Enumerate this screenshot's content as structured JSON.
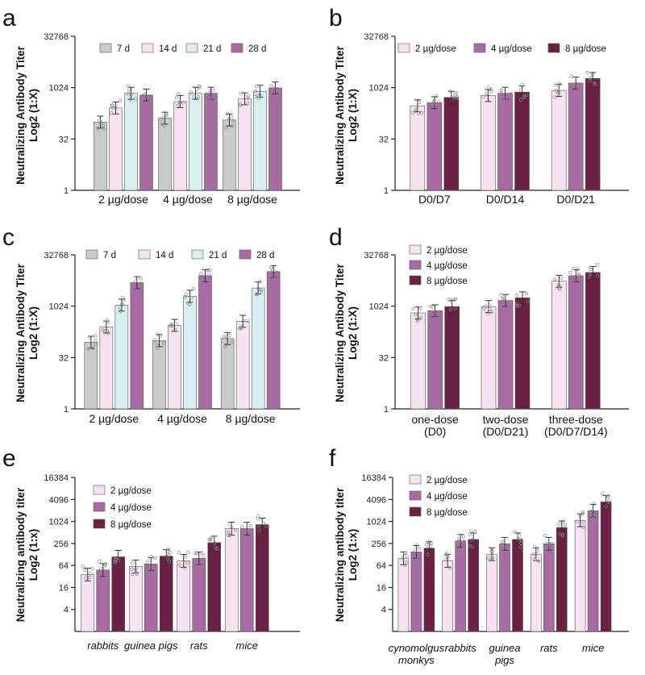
{
  "colors": {
    "7 d": "#c9cbcb",
    "14 d": "#f7e2f2",
    "21 d": "#d9eef0",
    "28 d": "#a86aa2",
    "2 µg/dose": "#f7e2f2",
    "4 µg/dose": "#a86aa2",
    "8 µg/dose": "#6a2143",
    "axis": "#222222"
  },
  "chart_data": [
    {
      "panel": "a",
      "type": "bar",
      "scale": "log2",
      "ylabel": "Neutralizing Antibody Titer",
      "ylabel2": "Log2 (1:X)",
      "yticks": [
        1,
        32,
        1024,
        32768
      ],
      "ylim": [
        1,
        32768
      ],
      "categories": [
        "2 µg/dose",
        "4 µg/dose",
        "8 µg/dose"
      ],
      "legend": "top-center-row",
      "series": [
        {
          "name": "7 d",
          "values": [
            100,
            130,
            115
          ]
        },
        {
          "name": "14 d",
          "values": [
            260,
            400,
            480
          ]
        },
        {
          "name": "21 d",
          "values": [
            700,
            700,
            800
          ]
        },
        {
          "name": "28 d",
          "values": [
            620,
            700,
            1000
          ]
        }
      ]
    },
    {
      "panel": "b",
      "type": "bar",
      "scale": "log2",
      "ylabel": "Neutralizing Antibody Titer",
      "ylabel2": "Log2 (1:X)",
      "yticks": [
        1,
        32,
        1024,
        32768
      ],
      "ylim": [
        1,
        32768
      ],
      "categories": [
        "D0/D7",
        "D0/D14",
        "D0/D21"
      ],
      "legend": "top-center-row",
      "series": [
        {
          "name": "2 µg/dose",
          "values": [
            300,
            600,
            850
          ]
        },
        {
          "name": "4 µg/dose",
          "values": [
            370,
            700,
            1400
          ]
        },
        {
          "name": "8 µg/dose",
          "values": [
            530,
            760,
            1900
          ]
        }
      ]
    },
    {
      "panel": "c",
      "type": "bar",
      "scale": "log2",
      "ylabel": "Neutralizing Antibody Titer",
      "ylabel2": "Log2 (1:X)",
      "yticks": [
        1,
        32,
        1024,
        32768
      ],
      "ylim": [
        1,
        32768
      ],
      "categories": [
        "2 µg/dose",
        "4 µg/dose",
        "8 µg/dose"
      ],
      "legend": "top-center-row",
      "series": [
        {
          "name": "7 d",
          "values": [
            90,
            100,
            115
          ]
        },
        {
          "name": "14 d",
          "values": [
            250,
            280,
            370
          ]
        },
        {
          "name": "21 d",
          "values": [
            1100,
            2000,
            3500
          ]
        },
        {
          "name": "28 d",
          "values": [
            5000,
            8000,
            10500
          ]
        }
      ]
    },
    {
      "panel": "d",
      "type": "bar",
      "scale": "log2",
      "ylabel": "Neutralizing Antibody Titer",
      "ylabel2": "Log2 (1:X)",
      "yticks": [
        1,
        32,
        1024,
        32768
      ],
      "ylim": [
        1,
        32768
      ],
      "categories": [
        "one-dose\n(D0)",
        "two-dose\n(D0/D21)",
        "three-dose\n(D0/D7/D14)"
      ],
      "legend": "top-left-column",
      "series": [
        {
          "name": "2 µg/dose",
          "values": [
            650,
            1000,
            5500
          ]
        },
        {
          "name": "4 µg/dose",
          "values": [
            750,
            1500,
            8000
          ]
        },
        {
          "name": "8 µg/dose",
          "values": [
            1000,
            1800,
            10000
          ]
        }
      ]
    },
    {
      "panel": "e",
      "type": "bar",
      "scale": "log2",
      "ylabel": "Neutralizing antibody titer",
      "ylabel2": "Log2 (1:x)",
      "yticks": [
        4,
        16,
        64,
        256,
        1024,
        4096,
        16384
      ],
      "ylim": [
        1,
        16384
      ],
      "categories": [
        "rabbits",
        "guinea pigs",
        "rats",
        "mice"
      ],
      "legend": "top-left-column",
      "series": [
        {
          "name": "2 µg/dose",
          "values": [
            36,
            60,
            85,
            650
          ]
        },
        {
          "name": "4 µg/dose",
          "values": [
            48,
            70,
            100,
            650
          ]
        },
        {
          "name": "8 µg/dose",
          "values": [
            110,
            115,
            270,
            840
          ]
        }
      ]
    },
    {
      "panel": "f",
      "type": "bar",
      "scale": "log2",
      "ylabel": "Neutralizing antibody titer",
      "ylabel2": "Log2 (1:x)",
      "yticks": [
        4,
        16,
        64,
        256,
        1024,
        4096,
        16384
      ],
      "ylim": [
        1,
        16384
      ],
      "categories": [
        "cynomolgus\nmonkys",
        "rabbits",
        "guinea\npigs",
        "rats",
        "mice"
      ],
      "legend": "top-left-column",
      "series": [
        {
          "name": "2 µg/dose",
          "values": [
            100,
            85,
            130,
            130,
            1100
          ]
        },
        {
          "name": "4 µg/dose",
          "values": [
            150,
            300,
            250,
            250,
            2000
          ]
        },
        {
          "name": "8 µg/dose",
          "values": [
            190,
            330,
            330,
            700,
            3500
          ]
        }
      ]
    }
  ]
}
